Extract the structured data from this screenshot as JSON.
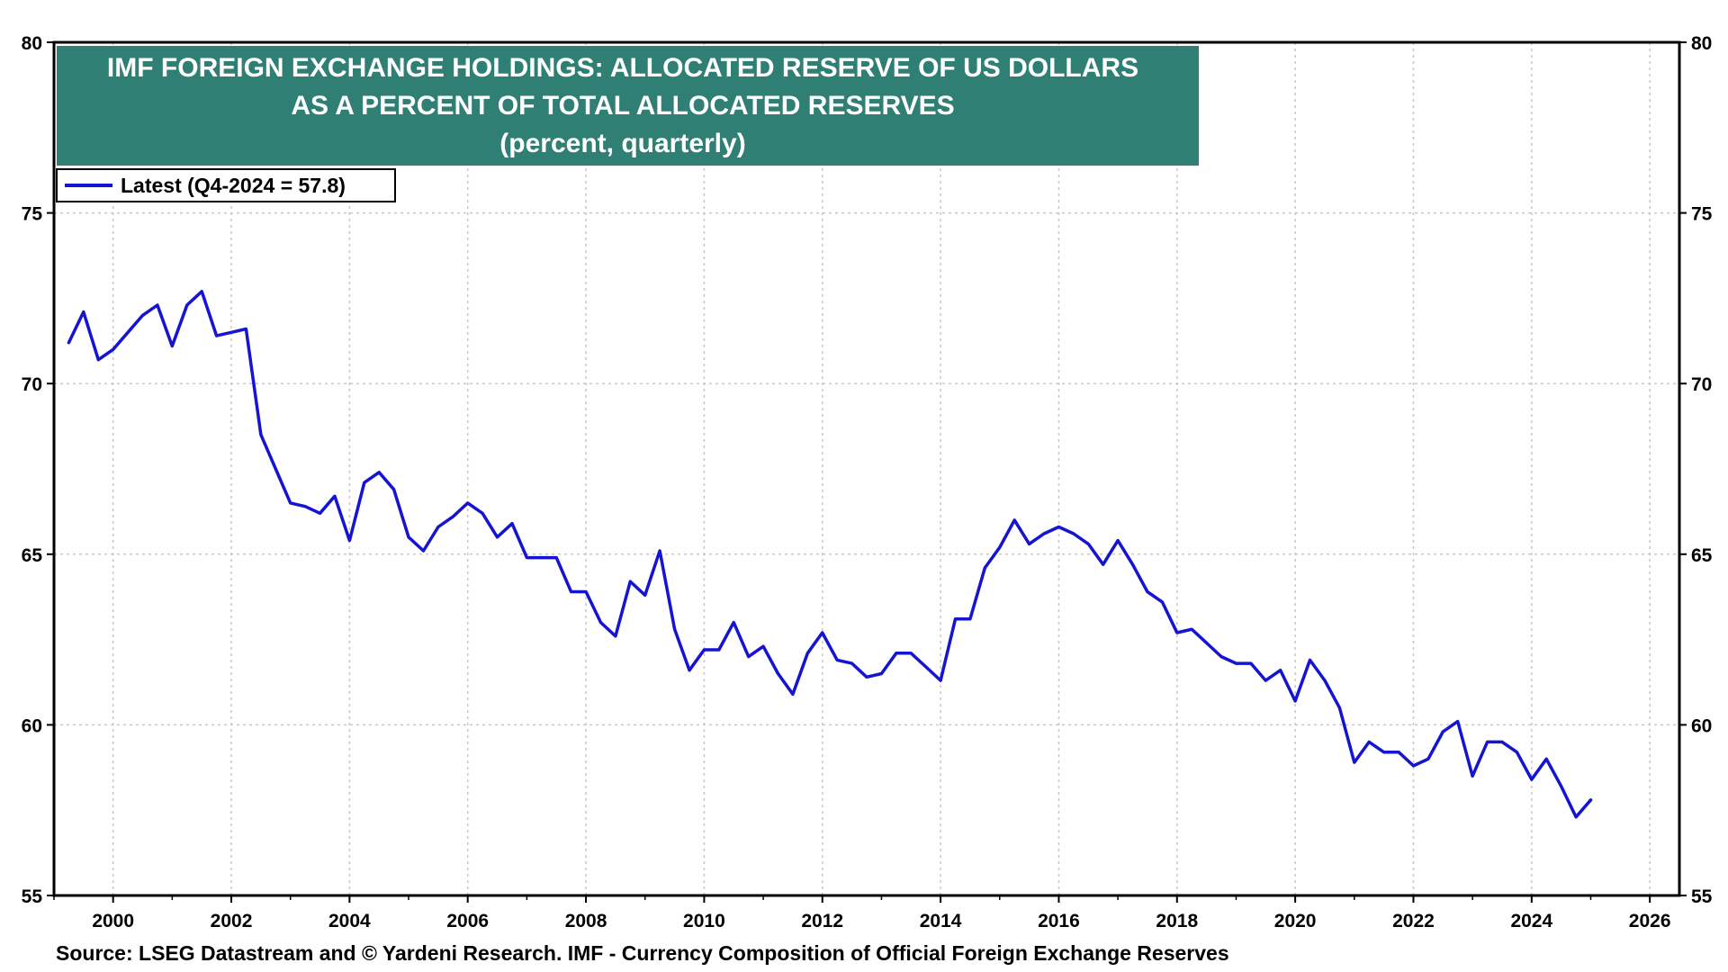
{
  "chart_data": {
    "type": "line",
    "title_lines": [
      "IMF FOREIGN EXCHANGE HOLDINGS: ALLOCATED RESERVE OF US DOLLARS",
      "AS A PERCENT OF TOTAL ALLOCATED RESERVES",
      "(percent, quarterly)"
    ],
    "legend": "Latest (Q4-2024 = 57.8)",
    "source": "Source: LSEG Datastream and © Yardeni Research. IMF - Currency Composition of Official Foreign Exchange Reserves",
    "xlim": [
      1999,
      2026.5
    ],
    "ylim": [
      55,
      80
    ],
    "x_ticks": [
      "2000",
      "2002",
      "2004",
      "2006",
      "2008",
      "2010",
      "2012",
      "2014",
      "2016",
      "2018",
      "2020",
      "2022",
      "2024",
      "2026"
    ],
    "y_ticks": [
      "55",
      "60",
      "65",
      "70",
      "75",
      "80"
    ],
    "grid": true,
    "legend_position": "top-left",
    "colors": {
      "line": "#1414d2",
      "title_bg": "#2f7f74",
      "grid": "#c8c8c8"
    },
    "series": [
      {
        "x": [
          1999.25,
          1999.5,
          1999.75,
          2000.0,
          2000.25,
          2000.5,
          2000.75,
          2001.0,
          2001.25,
          2001.5,
          2001.75,
          2002.0,
          2002.25,
          2002.5,
          2002.75,
          2003.0,
          2003.25,
          2003.5,
          2003.75,
          2004.0,
          2004.25,
          2004.5,
          2004.75,
          2005.0,
          2005.25,
          2005.5,
          2005.75,
          2006.0,
          2006.25,
          2006.5,
          2006.75,
          2007.0,
          2007.25,
          2007.5,
          2007.75,
          2008.0,
          2008.25,
          2008.5,
          2008.75,
          2009.0,
          2009.25,
          2009.5,
          2009.75,
          2010.0,
          2010.25,
          2010.5,
          2010.75,
          2011.0,
          2011.25,
          2011.5,
          2011.75,
          2012.0,
          2012.25,
          2012.5,
          2012.75,
          2013.0,
          2013.25,
          2013.5,
          2013.75,
          2014.0,
          2014.25,
          2014.5,
          2014.75,
          2015.0,
          2015.25,
          2015.5,
          2015.75,
          2016.0,
          2016.25,
          2016.5,
          2016.75,
          2017.0,
          2017.25,
          2017.5,
          2017.75,
          2018.0,
          2018.25,
          2018.5,
          2018.75,
          2019.0,
          2019.25,
          2019.5,
          2019.75,
          2020.0,
          2020.25,
          2020.5,
          2020.75,
          2021.0,
          2021.25,
          2021.5,
          2021.75,
          2022.0,
          2022.25,
          2022.5,
          2022.75,
          2023.0,
          2023.25,
          2023.5,
          2023.75,
          2024.0,
          2024.25,
          2024.5,
          2024.75,
          2025.0
        ],
        "values": [
          71.2,
          72.1,
          70.7,
          71.0,
          71.5,
          72.0,
          72.3,
          71.1,
          72.3,
          72.7,
          71.4,
          71.5,
          71.6,
          68.5,
          67.5,
          66.5,
          66.4,
          66.2,
          66.7,
          65.4,
          67.1,
          67.4,
          66.9,
          65.5,
          65.1,
          65.8,
          66.1,
          66.5,
          66.2,
          65.5,
          65.9,
          64.9,
          64.9,
          64.9,
          63.9,
          63.9,
          63.0,
          62.6,
          64.2,
          63.8,
          65.1,
          62.8,
          61.6,
          62.2,
          62.2,
          63.0,
          62.0,
          62.3,
          61.5,
          60.9,
          62.1,
          62.7,
          61.9,
          61.8,
          61.4,
          61.5,
          62.1,
          62.1,
          61.7,
          61.3,
          63.1,
          63.1,
          64.6,
          65.2,
          66.0,
          65.3,
          65.6,
          65.8,
          65.6,
          65.3,
          64.7,
          65.4,
          64.7,
          63.9,
          63.6,
          62.7,
          62.8,
          62.4,
          62.0,
          61.8,
          61.8,
          61.3,
          61.6,
          60.7,
          61.9,
          61.3,
          60.5,
          58.9,
          59.5,
          59.2,
          59.2,
          58.8,
          59.0,
          59.8,
          60.1,
          58.5,
          59.5,
          59.5,
          59.2,
          58.4,
          59.0,
          58.2,
          57.3,
          57.8
        ]
      }
    ]
  }
}
